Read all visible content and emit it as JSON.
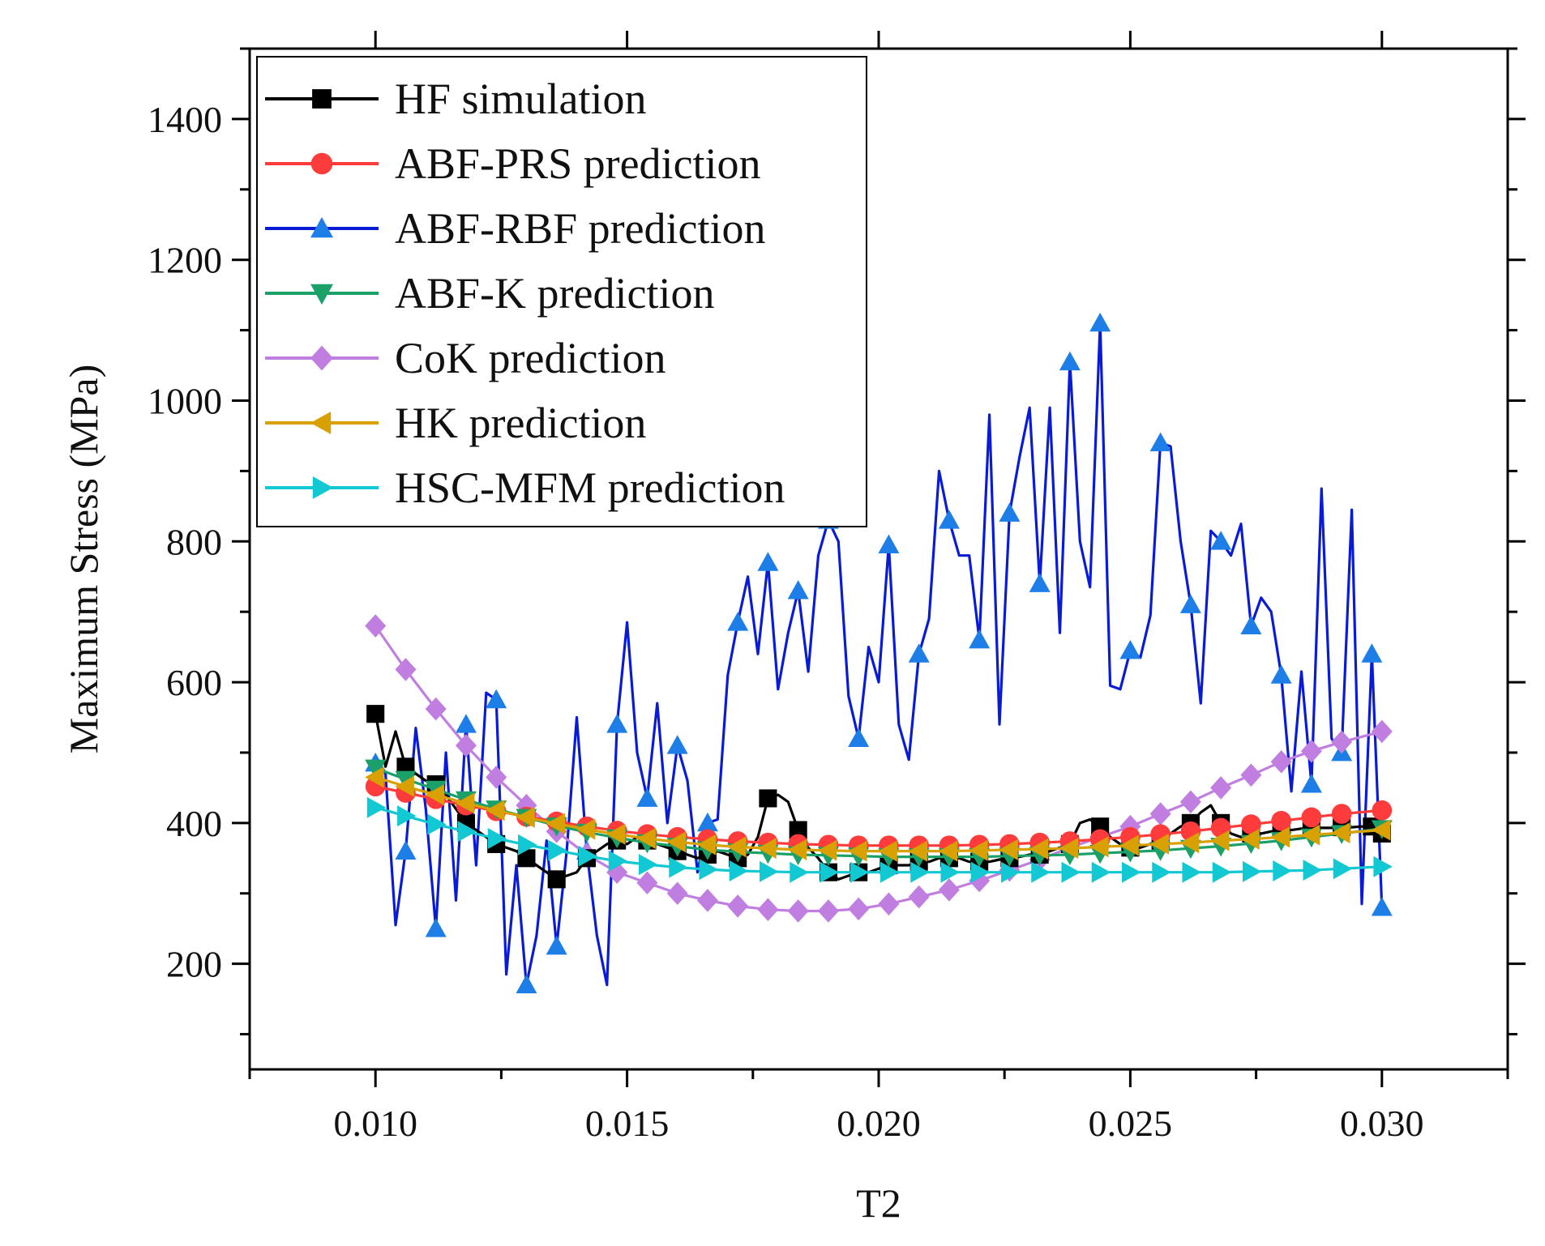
{
  "chart_data": {
    "type": "line",
    "title": "",
    "xlabel": "T2",
    "ylabel": "Maximum Stress (MPa)",
    "xlim": [
      0.0075,
      0.0325
    ],
    "ylim": [
      50,
      1500
    ],
    "x_ticks": [
      0.01,
      0.015,
      0.02,
      0.025,
      0.03
    ],
    "x_tick_labels": [
      "0.010",
      "0.015",
      "0.020",
      "0.025",
      "0.030"
    ],
    "y_ticks": [
      200,
      400,
      600,
      800,
      1000,
      1200,
      1400
    ],
    "y_tick_labels": [
      "200",
      "400",
      "600",
      "800",
      "1000",
      "1200",
      "1400"
    ],
    "legend_position": "top-left",
    "grid": false,
    "series": [
      {
        "name": "HF simulation",
        "color": "#000000",
        "marker": "square",
        "x": [
          0.01,
          0.0102,
          0.0104,
          0.0106,
          0.0108,
          0.011,
          0.0112,
          0.0114,
          0.0116,
          0.0118,
          0.012,
          0.0122,
          0.0124,
          0.0126,
          0.0128,
          0.013,
          0.0132,
          0.0134,
          0.0136,
          0.0138,
          0.014,
          0.0142,
          0.0144,
          0.0146,
          0.0148,
          0.015,
          0.0152,
          0.0154,
          0.0156,
          0.0158,
          0.016,
          0.0162,
          0.0164,
          0.0166,
          0.0168,
          0.017,
          0.0172,
          0.0174,
          0.0176,
          0.0178,
          0.018,
          0.0182,
          0.0184,
          0.0186,
          0.0188,
          0.019,
          0.0192,
          0.0194,
          0.0196,
          0.0198,
          0.02,
          0.0202,
          0.0204,
          0.0206,
          0.0208,
          0.021,
          0.0212,
          0.0214,
          0.0216,
          0.0218,
          0.022,
          0.0222,
          0.0224,
          0.0226,
          0.0228,
          0.023,
          0.0232,
          0.0234,
          0.0236,
          0.0238,
          0.024,
          0.0242,
          0.0244,
          0.0246,
          0.0248,
          0.025,
          0.0252,
          0.0254,
          0.0256,
          0.0258,
          0.026,
          0.0262,
          0.0264,
          0.0266,
          0.0268,
          0.027,
          0.0272,
          0.0274,
          0.0276,
          0.0278,
          0.028,
          0.0282,
          0.0284,
          0.0286,
          0.0288,
          0.029,
          0.0292,
          0.0294,
          0.0296,
          0.0298,
          0.03
        ],
        "values": [
          555,
          480,
          530,
          480,
          470,
          460,
          455,
          440,
          420,
          400,
          390,
          380,
          370,
          365,
          360,
          350,
          340,
          330,
          320,
          325,
          330,
          350,
          360,
          370,
          375,
          370,
          380,
          375,
          370,
          365,
          360,
          355,
          350,
          355,
          360,
          355,
          350,
          355,
          380,
          435,
          440,
          430,
          390,
          365,
          350,
          330,
          320,
          325,
          330,
          330,
          335,
          340,
          340,
          340,
          345,
          345,
          350,
          350,
          350,
          345,
          345,
          345,
          348,
          350,
          352,
          355,
          355,
          360,
          365,
          370,
          400,
          405,
          395,
          380,
          370,
          365,
          365,
          370,
          375,
          385,
          395,
          400,
          415,
          425,
          400,
          385,
          380,
          385,
          385,
          388,
          390,
          390,
          392,
          392,
          393,
          393,
          394,
          394,
          395,
          395,
          385
        ]
      },
      {
        "name": "ABF-PRS prediction",
        "color": "#ff3b3b",
        "marker": "circle",
        "x": [
          0.01,
          0.0106,
          0.0112,
          0.0118,
          0.0124,
          0.013,
          0.0136,
          0.0142,
          0.0148,
          0.0154,
          0.016,
          0.0166,
          0.0172,
          0.0178,
          0.0184,
          0.019,
          0.0196,
          0.0202,
          0.0208,
          0.0214,
          0.022,
          0.0226,
          0.0232,
          0.0238,
          0.0244,
          0.025,
          0.0256,
          0.0262,
          0.0268,
          0.0274,
          0.028,
          0.0286,
          0.0292,
          0.03
        ],
        "values": [
          452,
          443,
          434,
          425,
          417,
          409,
          402,
          395,
          389,
          384,
          380,
          377,
          374,
          372,
          370,
          369,
          368,
          368,
          368,
          368,
          369,
          370,
          372,
          374,
          377,
          380,
          384,
          388,
          393,
          398,
          403,
          408,
          413,
          418
        ]
      },
      {
        "name": "ABF-RBF prediction",
        "color": "#0a1bd6",
        "marker_color": "#1e7ee8",
        "marker": "triangle-up",
        "x": [
          0.01,
          0.0102,
          0.0104,
          0.0106,
          0.0108,
          0.011,
          0.0112,
          0.0114,
          0.0116,
          0.0118,
          0.012,
          0.0122,
          0.0124,
          0.0126,
          0.0128,
          0.013,
          0.0132,
          0.0134,
          0.0136,
          0.0138,
          0.014,
          0.0142,
          0.0144,
          0.0146,
          0.0148,
          0.015,
          0.0152,
          0.0154,
          0.0156,
          0.0158,
          0.016,
          0.0162,
          0.0164,
          0.0166,
          0.0168,
          0.017,
          0.0172,
          0.0174,
          0.0176,
          0.0178,
          0.018,
          0.0182,
          0.0184,
          0.0186,
          0.0188,
          0.019,
          0.0192,
          0.0194,
          0.0196,
          0.0198,
          0.02,
          0.0202,
          0.0204,
          0.0206,
          0.0208,
          0.021,
          0.0212,
          0.0214,
          0.0216,
          0.0218,
          0.022,
          0.0222,
          0.0224,
          0.0226,
          0.0228,
          0.023,
          0.0232,
          0.0234,
          0.0236,
          0.0238,
          0.024,
          0.0242,
          0.0244,
          0.0246,
          0.0248,
          0.025,
          0.0252,
          0.0254,
          0.0256,
          0.0258,
          0.026,
          0.0262,
          0.0264,
          0.0266,
          0.0268,
          0.027,
          0.0272,
          0.0274,
          0.0276,
          0.0278,
          0.028,
          0.0282,
          0.0284,
          0.0286,
          0.0288,
          0.029,
          0.0292,
          0.0294,
          0.0296,
          0.0298,
          0.03
        ],
        "values": [
          485,
          470,
          255,
          360,
          535,
          420,
          250,
          500,
          290,
          540,
          340,
          585,
          575,
          185,
          340,
          170,
          240,
          375,
          225,
          360,
          550,
          360,
          240,
          170,
          540,
          685,
          500,
          435,
          570,
          400,
          510,
          460,
          330,
          400,
          405,
          610,
          685,
          750,
          640,
          770,
          590,
          670,
          730,
          615,
          780,
          830,
          800,
          580,
          520,
          650,
          600,
          795,
          540,
          490,
          640,
          690,
          900,
          830,
          780,
          780,
          660,
          980,
          540,
          840,
          920,
          990,
          740,
          990,
          670,
          1055,
          800,
          735,
          1110,
          595,
          590,
          645,
          635,
          695,
          940,
          935,
          800,
          710,
          570,
          815,
          800,
          780,
          825,
          680,
          720,
          700,
          610,
          445,
          615,
          455,
          875,
          520,
          500,
          845,
          285,
          640,
          280
        ]
      },
      {
        "name": "ABF-K prediction",
        "color": "#1aa068",
        "marker": "triangle-down",
        "x": [
          0.01,
          0.0106,
          0.0112,
          0.0118,
          0.0124,
          0.013,
          0.0136,
          0.0142,
          0.0148,
          0.0154,
          0.016,
          0.0166,
          0.0172,
          0.0178,
          0.0184,
          0.019,
          0.0196,
          0.0202,
          0.0208,
          0.0214,
          0.022,
          0.0226,
          0.0232,
          0.0238,
          0.0244,
          0.025,
          0.0256,
          0.0262,
          0.0268,
          0.0274,
          0.028,
          0.0286,
          0.0292,
          0.03
        ],
        "values": [
          478,
          462,
          448,
          433,
          420,
          408,
          396,
          387,
          379,
          372,
          367,
          362,
          359,
          357,
          355,
          354,
          353,
          352,
          352,
          352,
          352,
          353,
          354,
          355,
          357,
          359,
          361,
          364,
          367,
          371,
          375,
          380,
          385,
          392
        ]
      },
      {
        "name": "CoK prediction",
        "color": "#c07ee0",
        "marker": "diamond",
        "x": [
          0.01,
          0.0106,
          0.0112,
          0.0118,
          0.0124,
          0.013,
          0.0136,
          0.0142,
          0.0148,
          0.0154,
          0.016,
          0.0166,
          0.0172,
          0.0178,
          0.0184,
          0.019,
          0.0196,
          0.0202,
          0.0208,
          0.0214,
          0.022,
          0.0226,
          0.0232,
          0.0238,
          0.0244,
          0.025,
          0.0256,
          0.0262,
          0.0268,
          0.0274,
          0.028,
          0.0286,
          0.0292,
          0.03
        ],
        "values": [
          680,
          618,
          562,
          510,
          465,
          425,
          388,
          355,
          330,
          315,
          300,
          290,
          282,
          277,
          275,
          275,
          278,
          285,
          295,
          305,
          318,
          333,
          348,
          365,
          380,
          395,
          413,
          430,
          450,
          468,
          487,
          502,
          515,
          530
        ]
      },
      {
        "name": "HK prediction",
        "color": "#d8a000",
        "marker": "triangle-left",
        "x": [
          0.01,
          0.0106,
          0.0112,
          0.0118,
          0.0124,
          0.013,
          0.0136,
          0.0142,
          0.0148,
          0.0154,
          0.016,
          0.0166,
          0.0172,
          0.0178,
          0.0184,
          0.019,
          0.0196,
          0.0202,
          0.0208,
          0.0214,
          0.022,
          0.0226,
          0.0232,
          0.0238,
          0.0244,
          0.025,
          0.0256,
          0.0262,
          0.0268,
          0.0274,
          0.028,
          0.0286,
          0.0292,
          0.03
        ],
        "values": [
          465,
          452,
          440,
          428,
          418,
          408,
          399,
          391,
          384,
          378,
          373,
          369,
          366,
          364,
          362,
          361,
          360,
          360,
          360,
          360,
          361,
          362,
          363,
          364,
          366,
          368,
          370,
          372,
          375,
          377,
          380,
          383,
          386,
          390
        ]
      },
      {
        "name": "HSC-MFM prediction",
        "color": "#12c8d2",
        "marker": "triangle-right",
        "x": [
          0.01,
          0.0106,
          0.0112,
          0.0118,
          0.0124,
          0.013,
          0.0136,
          0.0142,
          0.0148,
          0.0154,
          0.016,
          0.0166,
          0.0172,
          0.0178,
          0.0184,
          0.019,
          0.0196,
          0.0202,
          0.0208,
          0.0214,
          0.022,
          0.0226,
          0.0232,
          0.0238,
          0.0244,
          0.025,
          0.0256,
          0.0262,
          0.0268,
          0.0274,
          0.028,
          0.0286,
          0.0292,
          0.03
        ],
        "values": [
          422,
          410,
          398,
          388,
          378,
          369,
          361,
          353,
          346,
          341,
          337,
          334,
          332,
          331,
          330,
          330,
          330,
          330,
          330,
          330,
          330,
          330,
          330,
          330,
          330,
          330,
          330,
          330,
          330,
          331,
          332,
          333,
          335,
          338
        ]
      }
    ]
  }
}
